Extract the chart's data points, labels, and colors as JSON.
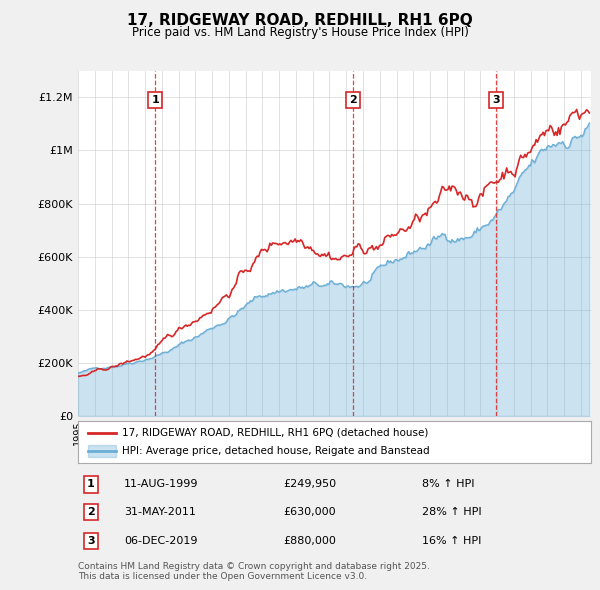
{
  "title": "17, RIDGEWAY ROAD, REDHILL, RH1 6PQ",
  "subtitle": "Price paid vs. HM Land Registry's House Price Index (HPI)",
  "hpi_label": "HPI: Average price, detached house, Reigate and Banstead",
  "property_label": "17, RIDGEWAY ROAD, REDHILL, RH1 6PQ (detached house)",
  "hpi_color": "#6baed6",
  "property_color": "#d62728",
  "background_color": "#f0f0f0",
  "plot_bg_color": "#ffffff",
  "grid_color": "#cccccc",
  "ylim": [
    0,
    1300000
  ],
  "yticks": [
    0,
    200000,
    400000,
    600000,
    800000,
    1000000,
    1200000
  ],
  "ytick_labels": [
    "£0",
    "£200K",
    "£400K",
    "£600K",
    "£800K",
    "£1M",
    "£1.2M"
  ],
  "x_start_year": 1995,
  "x_end_year": 2025,
  "sales": [
    {
      "num": 1,
      "date": "11-AUG-1999",
      "price": 249950,
      "pct": "8%",
      "direction": "↑",
      "year": 1999.62
    },
    {
      "num": 2,
      "date": "31-MAY-2011",
      "price": 630000,
      "pct": "28%",
      "direction": "↑",
      "year": 2011.42
    },
    {
      "num": 3,
      "date": "06-DEC-2019",
      "price": 880000,
      "pct": "16%",
      "direction": "↑",
      "year": 2019.93
    }
  ],
  "footer": "Contains HM Land Registry data © Crown copyright and database right 2025.\nThis data is licensed under the Open Government Licence v3.0."
}
